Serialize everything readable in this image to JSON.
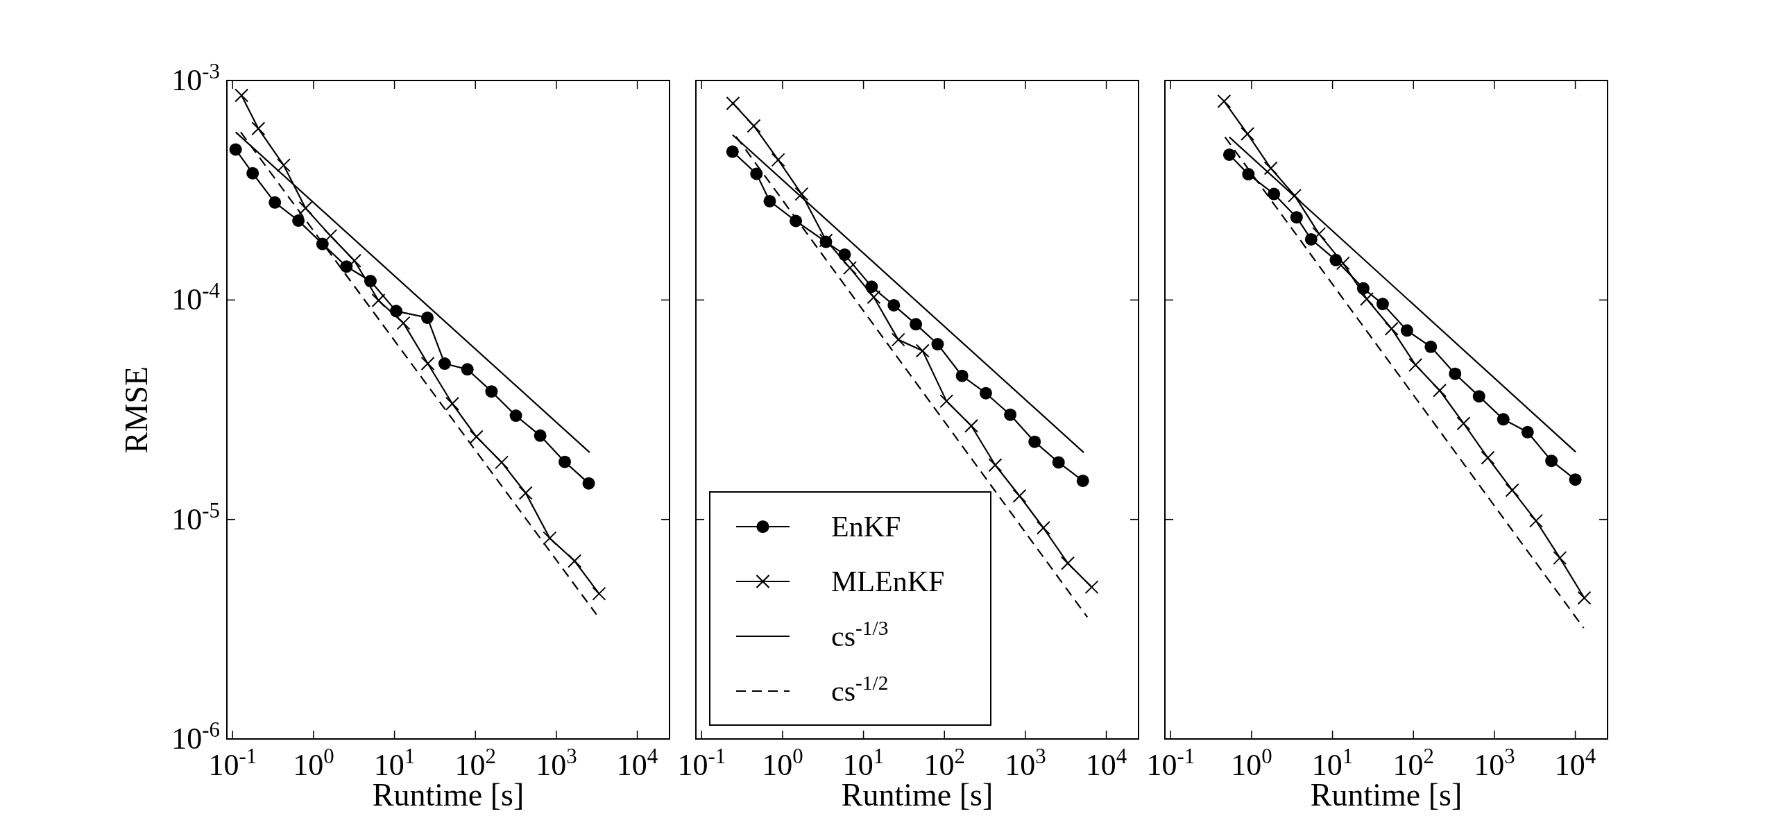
{
  "chart_data": [
    {
      "type": "line",
      "xlabel": "Runtime [s]",
      "ylabel": "RMSE",
      "log": "xy",
      "xlim": [
        0.085,
        25000
      ],
      "ylim": [
        1e-06,
        0.001
      ],
      "xticks": [
        {
          "value": 0.1,
          "label": "10$^{-1}$"
        },
        {
          "value": 1,
          "label": "10$^{0}$"
        },
        {
          "value": 10,
          "label": "10$^{1}$"
        },
        {
          "value": 100,
          "label": "10$^{2}$"
        },
        {
          "value": 1000,
          "label": "10$^{3}$"
        },
        {
          "value": 10000,
          "label": "10$^{4}$"
        }
      ],
      "yticks": [
        {
          "value": 1e-06,
          "label": "10$^{-6}$"
        },
        {
          "value": 1e-05,
          "label": "10$^{-5}$"
        },
        {
          "value": 0.0001,
          "label": "10$^{-4}$"
        },
        {
          "value": 0.001,
          "label": "10$^{-3}$"
        }
      ],
      "series": [
        {
          "color": "#000000",
          "marker": "circle",
          "line_style": "solid",
          "x": [
            0.109,
            0.177,
            0.333,
            0.65,
            1.29,
            2.55,
            5.05,
            10.5,
            25.5,
            41.7,
            79.6,
            158,
            316,
            632,
            1270,
            2510
          ],
          "values": [
            0.000485,
            0.000378,
            0.000278,
            0.00023,
            0.00018,
            0.000142,
            0.000122,
            8.9e-05,
            8.3e-05,
            5.13e-05,
            4.83e-05,
            3.83e-05,
            2.97e-05,
            2.41e-05,
            1.83e-05,
            1.46e-05
          ]
        },
        {
          "color": "#000000",
          "marker": "cross",
          "line_style": "solid",
          "x": [
            0.129,
            0.208,
            0.428,
            0.796,
            1.62,
            3.2,
            6.34,
            12.9,
            25.8,
            51.8,
            103,
            211,
            418,
            828,
            1680,
            3370
          ],
          "values": [
            0.000855,
            0.000604,
            0.000411,
            0.000262,
            0.000196,
            0.000151,
            9.95e-05,
            7.85e-05,
            5.13e-05,
            3.37e-05,
            2.38e-05,
            1.82e-05,
            1.32e-05,
            8.22e-06,
            6.47e-06,
            4.59e-06
          ]
        },
        {
          "color": "#000000",
          "marker": "none",
          "line_style": "solid",
          "x": [
            0.109,
            2580
          ],
          "values": [
            0.000582,
            2.02e-05
          ]
        },
        {
          "color": "#000000",
          "marker": "none",
          "line_style": "dashed",
          "x": [
            0.126,
            3130
          ],
          "values": [
            0.000582,
            3.69e-06
          ]
        }
      ]
    },
    {
      "type": "line",
      "xlabel": "Runtime [s]",
      "log": "xy",
      "xlim": [
        0.085,
        25000
      ],
      "ylim": [
        1e-06,
        0.001
      ],
      "tick_labels": "x",
      "legend": "bottom left",
      "xticks": [
        {
          "value": 0.1,
          "label": "10$^{-1}$"
        },
        {
          "value": 1,
          "label": "10$^{0}$"
        },
        {
          "value": 10,
          "label": "10$^{1}$"
        },
        {
          "value": 100,
          "label": "10$^{2}$"
        },
        {
          "value": 1000,
          "label": "10$^{3}$"
        },
        {
          "value": 10000,
          "label": "10$^{4}$"
        }
      ],
      "yticks": [
        {
          "value": 1e-06,
          "label": null
        },
        {
          "value": 1e-05,
          "label": null
        },
        {
          "value": 0.0001,
          "label": null
        },
        {
          "value": 0.001,
          "label": null
        }
      ],
      "series": [
        {
          "name": "EnKF",
          "color": "#000000",
          "marker": "circle",
          "line_style": "solid",
          "x": [
            0.241,
            0.476,
            0.695,
            1.46,
            3.44,
            5.85,
            12.6,
            23.7,
            44.4,
            82.4,
            165,
            325,
            650,
            1300,
            2570,
            5130
          ],
          "values": [
            0.000474,
            0.000376,
            0.000282,
            0.000229,
            0.000184,
            0.000161,
            0.000115,
            9.46e-05,
            7.75e-05,
            6.29e-05,
            4.51e-05,
            3.76e-05,
            3e-05,
            2.26e-05,
            1.82e-05,
            1.5e-05
          ]
        },
        {
          "name": "MLEnKF",
          "color": "#000000",
          "marker": "cross",
          "line_style": "solid",
          "x": [
            0.244,
            0.442,
            0.883,
            1.72,
            3.44,
            6.8,
            13.4,
            26.9,
            53.7,
            106,
            215,
            424,
            847,
            1670,
            3340,
            6600
          ],
          "values": [
            0.000786,
            0.000621,
            0.000435,
            0.000304,
            0.000187,
            0.00014,
            0.000103,
            6.59e-05,
            5.87e-05,
            3.46e-05,
            2.67e-05,
            1.77e-05,
            1.28e-05,
            9.16e-06,
            6.32e-06,
            4.92e-06
          ]
        },
        {
          "name": "cs$^{-1/3}$",
          "color": "#000000",
          "marker": "none",
          "line_style": "solid",
          "x": [
            0.241,
            5260
          ],
          "values": [
            0.000566,
            2.02e-05
          ]
        },
        {
          "name": "cs$^{-1/2}$",
          "color": "#000000",
          "marker": "none",
          "line_style": "dashed",
          "x": [
            0.267,
            5820
          ],
          "values": [
            0.000555,
            3.59e-06
          ]
        }
      ]
    },
    {
      "type": "line",
      "xlabel": "Runtime [s]",
      "log": "xy",
      "xlim": [
        0.085,
        25000
      ],
      "ylim": [
        1e-06,
        0.001
      ],
      "tick_labels": "x",
      "xticks": [
        {
          "value": 0.1,
          "label": "10$^{-1}$"
        },
        {
          "value": 1,
          "label": "10$^{0}$"
        },
        {
          "value": 10,
          "label": "10$^{1}$"
        },
        {
          "value": 100,
          "label": "10$^{2}$"
        },
        {
          "value": 1000,
          "label": "10$^{3}$"
        },
        {
          "value": 10000,
          "label": "10$^{4}$"
        }
      ],
      "yticks": [
        {
          "value": 1e-06,
          "label": null
        },
        {
          "value": 1e-05,
          "label": null
        },
        {
          "value": 0.0001,
          "label": null
        },
        {
          "value": 0.001,
          "label": null
        }
      ],
      "series": [
        {
          "color": "#000000",
          "marker": "circle",
          "line_style": "solid",
          "x": [
            0.532,
            0.914,
            1.89,
            3.6,
            5.45,
            11.0,
            24.0,
            41.7,
            83.2,
            164,
            327,
            646,
            1290,
            2570,
            5070,
            10000
          ],
          "values": [
            0.000459,
            0.000374,
            0.000304,
            0.000238,
            0.000189,
            0.000152,
            0.000113,
            9.59e-05,
            7.26e-05,
            6.12e-05,
            4.61e-05,
            3.64e-05,
            2.86e-05,
            2.5e-05,
            1.85e-05,
            1.52e-05
          ]
        },
        {
          "color": "#000000",
          "marker": "cross",
          "line_style": "solid",
          "x": [
            0.458,
            0.891,
            1.73,
            3.41,
            6.82,
            13.5,
            26.5,
            53.7,
            106,
            211,
            416,
            830,
            1660,
            3270,
            6440,
            12900
          ],
          "values": [
            0.000804,
            0.000571,
            0.000398,
            0.000299,
            0.0002,
            0.000147,
            0.000101,
            7.4e-05,
            5.06e-05,
            3.87e-05,
            2.74e-05,
            1.91e-05,
            1.36e-05,
            9.86e-06,
            6.68e-06,
            4.39e-06
          ]
        },
        {
          "color": "#000000",
          "marker": "none",
          "line_style": "solid",
          "x": [
            0.532,
            10100
          ],
          "values": [
            0.000552,
            2.03e-05
          ]
        },
        {
          "color": "#000000",
          "marker": "none",
          "line_style": "dashed",
          "x": [
            0.47,
            12700
          ],
          "values": [
            0.000552,
            3.2e-06
          ]
        }
      ]
    }
  ]
}
